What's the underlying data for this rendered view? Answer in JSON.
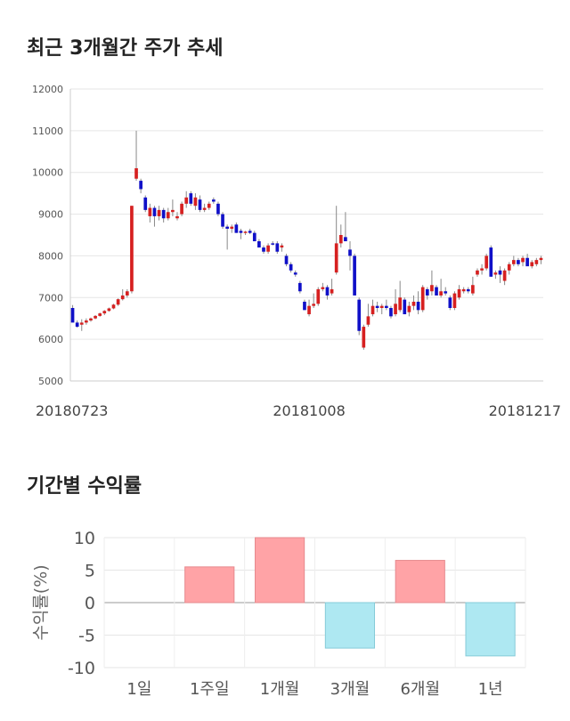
{
  "titles": {
    "price": "최근 3개월간 주가 추세",
    "returns": "기간별 수익률"
  },
  "colors": {
    "up": "#d62020",
    "down": "#1010c8",
    "pos_bar": "#ffa3a6",
    "neg_bar": "#aee8f2"
  },
  "chart_data": [
    {
      "type": "candlestick",
      "title": "최근 3개월간 주가 추세",
      "ylim": [
        5000,
        12000
      ],
      "yticks": [
        5000,
        6000,
        7000,
        8000,
        9000,
        10000,
        11000,
        12000
      ],
      "xtick_labels": [
        "20180723",
        "20181008",
        "20181217"
      ],
      "xtick_index": [
        0,
        52,
        103
      ],
      "grid": true,
      "candles": [
        [
          6750,
          6820,
          6450,
          6400
        ],
        [
          6400,
          6450,
          6280,
          6300
        ],
        [
          6350,
          6480,
          6200,
          6400
        ],
        [
          6400,
          6500,
          6350,
          6450
        ],
        [
          6450,
          6520,
          6420,
          6500
        ],
        [
          6500,
          6580,
          6480,
          6560
        ],
        [
          6560,
          6640,
          6540,
          6620
        ],
        [
          6620,
          6700,
          6580,
          6680
        ],
        [
          6680,
          6760,
          6660,
          6740
        ],
        [
          6740,
          6850,
          6720,
          6830
        ],
        [
          6830,
          6980,
          6800,
          6960
        ],
        [
          6960,
          7200,
          6930,
          7050
        ],
        [
          7050,
          7200,
          7000,
          7150
        ],
        [
          7150,
          9200,
          7100,
          9200
        ],
        [
          9850,
          11000,
          9800,
          10100
        ],
        [
          9800,
          9850,
          9500,
          9600
        ],
        [
          9400,
          9450,
          9050,
          9100
        ],
        [
          8950,
          9250,
          8800,
          9150
        ],
        [
          9150,
          9200,
          8700,
          8950
        ],
        [
          8950,
          9200,
          8850,
          9100
        ],
        [
          9100,
          9150,
          8800,
          8900
        ],
        [
          8900,
          9150,
          8850,
          9050
        ],
        [
          9050,
          9350,
          8950,
          9100
        ],
        [
          8900,
          9050,
          8850,
          8950
        ],
        [
          9000,
          9300,
          8950,
          9250
        ],
        [
          9250,
          9550,
          9150,
          9400
        ],
        [
          9500,
          9550,
          9200,
          9250
        ],
        [
          9200,
          9500,
          9100,
          9400
        ],
        [
          9350,
          9450,
          9050,
          9100
        ],
        [
          9100,
          9250,
          9050,
          9150
        ],
        [
          9150,
          9300,
          9100,
          9250
        ],
        [
          9350,
          9400,
          9250,
          9300
        ],
        [
          9250,
          9300,
          8950,
          9000
        ],
        [
          9000,
          9050,
          8650,
          8700
        ],
        [
          8700,
          8750,
          8150,
          8650
        ],
        [
          8650,
          8750,
          8550,
          8700
        ],
        [
          8750,
          8800,
          8550,
          8550
        ],
        [
          8600,
          8650,
          8400,
          8550
        ],
        [
          8550,
          8600,
          8500,
          8580
        ],
        [
          8600,
          8650,
          8520,
          8550
        ],
        [
          8550,
          8600,
          8350,
          8350
        ],
        [
          8350,
          8400,
          8250,
          8200
        ],
        [
          8200,
          8250,
          8050,
          8100
        ],
        [
          8100,
          8300,
          8050,
          8250
        ],
        [
          8300,
          8350,
          8250,
          8280
        ],
        [
          8300,
          8350,
          8050,
          8100
        ],
        [
          8200,
          8300,
          8100,
          8250
        ],
        [
          8000,
          8050,
          7750,
          7800
        ],
        [
          7800,
          7850,
          7600,
          7650
        ],
        [
          7600,
          7650,
          7500,
          7550
        ],
        [
          7350,
          7400,
          7100,
          7150
        ],
        [
          6900,
          6950,
          6700,
          6700
        ],
        [
          6600,
          6950,
          6550,
          6800
        ],
        [
          6800,
          7100,
          6750,
          6850
        ],
        [
          6850,
          7250,
          6800,
          7200
        ],
        [
          7200,
          7350,
          7150,
          7250
        ],
        [
          7250,
          7300,
          6950,
          7050
        ],
        [
          7100,
          7450,
          7050,
          7200
        ],
        [
          7600,
          9200,
          7550,
          8300
        ],
        [
          8300,
          8750,
          8200,
          8500
        ],
        [
          8450,
          9050,
          8350,
          8350
        ],
        [
          8150,
          8350,
          7650,
          8000
        ],
        [
          8000,
          8050,
          7050,
          7050
        ],
        [
          6950,
          7000,
          6100,
          6200
        ],
        [
          5800,
          6350,
          5750,
          6300
        ],
        [
          6350,
          6850,
          6300,
          6550
        ],
        [
          6600,
          6950,
          6550,
          6800
        ],
        [
          6800,
          6900,
          6650,
          6750
        ],
        [
          6750,
          6850,
          6600,
          6800
        ],
        [
          6800,
          6950,
          6700,
          6750
        ],
        [
          6750,
          6800,
          6500,
          6550
        ],
        [
          6600,
          7200,
          6550,
          6850
        ],
        [
          6700,
          7400,
          6650,
          7000
        ],
        [
          6950,
          7000,
          6600,
          6600
        ],
        [
          6650,
          6900,
          6550,
          6800
        ],
        [
          6800,
          7050,
          6700,
          6900
        ],
        [
          6900,
          7150,
          6600,
          6700
        ],
        [
          6700,
          7300,
          6650,
          7250
        ],
        [
          7200,
          7250,
          6950,
          7050
        ],
        [
          7150,
          7650,
          7050,
          7300
        ],
        [
          7250,
          7300,
          7050,
          7050
        ],
        [
          7050,
          7450,
          7000,
          7150
        ],
        [
          7150,
          7250,
          7050,
          7100
        ],
        [
          7000,
          7050,
          6700,
          6750
        ],
        [
          6750,
          7150,
          6700,
          7100
        ],
        [
          7000,
          7300,
          6950,
          7200
        ],
        [
          7150,
          7250,
          7100,
          7200
        ],
        [
          7200,
          7250,
          7100,
          7150
        ],
        [
          7100,
          7500,
          7050,
          7300
        ],
        [
          7550,
          7700,
          7500,
          7650
        ],
        [
          7650,
          7800,
          7550,
          7700
        ],
        [
          7700,
          8050,
          7650,
          8000
        ],
        [
          8200,
          8250,
          7500,
          7500
        ],
        [
          7550,
          7650,
          7450,
          7600
        ],
        [
          7650,
          7750,
          7350,
          7550
        ],
        [
          7400,
          7700,
          7300,
          7650
        ],
        [
          7650,
          7850,
          7550,
          7800
        ],
        [
          7800,
          8000,
          7750,
          7900
        ],
        [
          7900,
          7950,
          7750,
          7800
        ],
        [
          7850,
          8000,
          7750,
          7950
        ],
        [
          7950,
          8050,
          7800,
          7750
        ],
        [
          7750,
          7900,
          7700,
          7850
        ],
        [
          7800,
          7950,
          7750,
          7900
        ],
        [
          7900,
          8000,
          7800,
          7950
        ]
      ]
    },
    {
      "type": "bar",
      "title": "기간별 수익률",
      "categories": [
        "1일",
        "1주일",
        "1개월",
        "3개월",
        "6개월",
        "1년"
      ],
      "values": [
        0,
        5.5,
        10,
        -7,
        6.5,
        -8.2
      ],
      "ylabel": "수익률(%)",
      "ylim": [
        -10,
        10
      ],
      "yticks": [
        -10,
        -5,
        0,
        5,
        10
      ],
      "grid": true
    }
  ]
}
